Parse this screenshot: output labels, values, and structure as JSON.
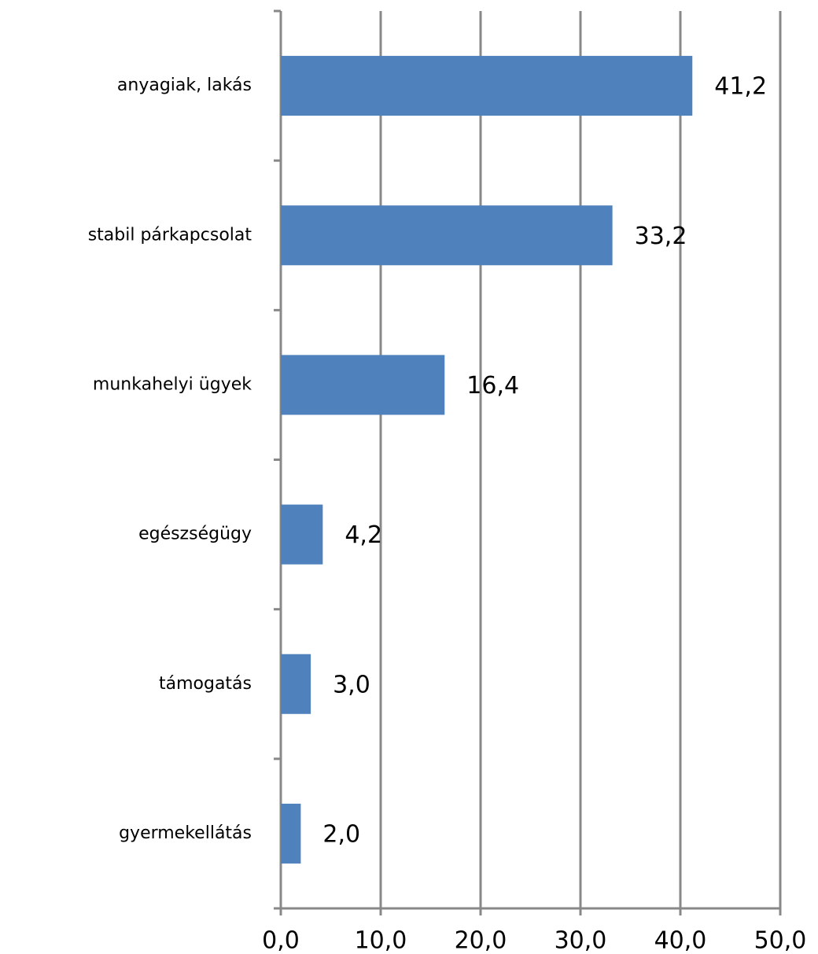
{
  "chart_data": {
    "type": "bar",
    "orientation": "horizontal",
    "categories": [
      "anyagiak, lakás",
      "stabil párkapcsolat",
      "munkahelyi ügyek",
      "egészségügy",
      "támogatás",
      "gyermekellátás"
    ],
    "values": [
      41.2,
      33.2,
      16.4,
      4.2,
      3.0,
      2.0
    ],
    "value_labels": [
      "41,2",
      "33,2",
      "16,4",
      "4,2",
      "3,0",
      "2,0"
    ],
    "color": "#4f81bd",
    "xlim": [
      0,
      50
    ],
    "xticks": [
      {
        "value": 0,
        "label": "0,0"
      },
      {
        "value": 10,
        "label": "10,0"
      },
      {
        "value": 20,
        "label": "20,0"
      },
      {
        "value": 30,
        "label": "30,0"
      },
      {
        "value": 40,
        "label": "40,0"
      },
      {
        "value": 50,
        "label": "50,0"
      }
    ],
    "grid": true
  }
}
